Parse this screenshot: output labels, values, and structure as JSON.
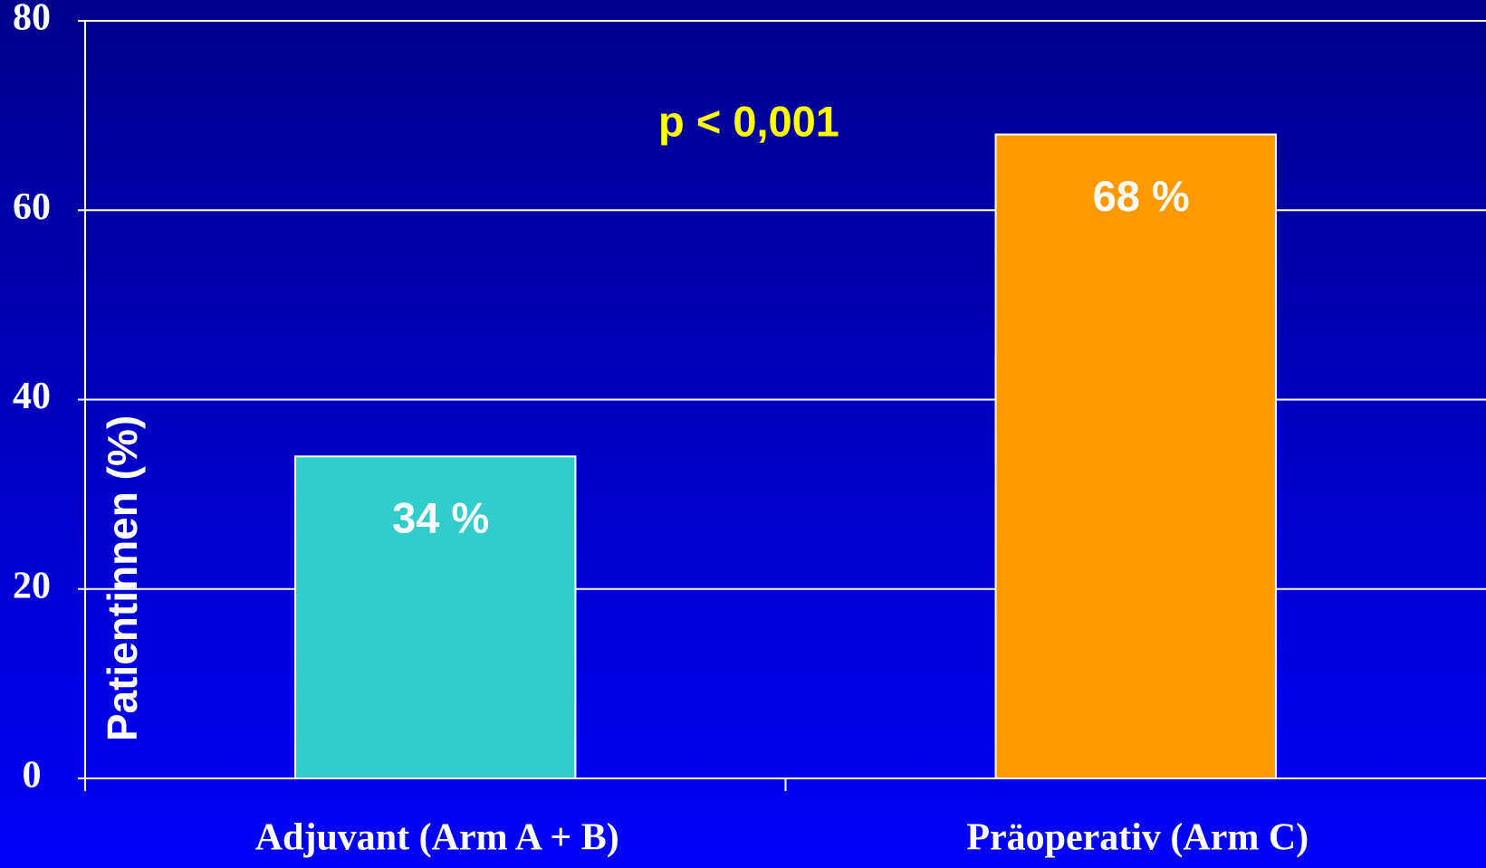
{
  "chart_data": {
    "type": "bar",
    "categories": [
      "Adjuvant (Arm A + B)",
      "Präoperativ (Arm C)"
    ],
    "values": [
      34,
      68
    ],
    "value_labels": [
      "34 %",
      "68 %"
    ],
    "colors": [
      "#33cccc",
      "#ff9900"
    ],
    "ylabel": "Patientinnen (%)",
    "annotation": "p < 0,001",
    "ylim": [
      0,
      80
    ],
    "yticks": [
      0,
      20,
      40,
      60,
      80
    ],
    "grid": true
  }
}
